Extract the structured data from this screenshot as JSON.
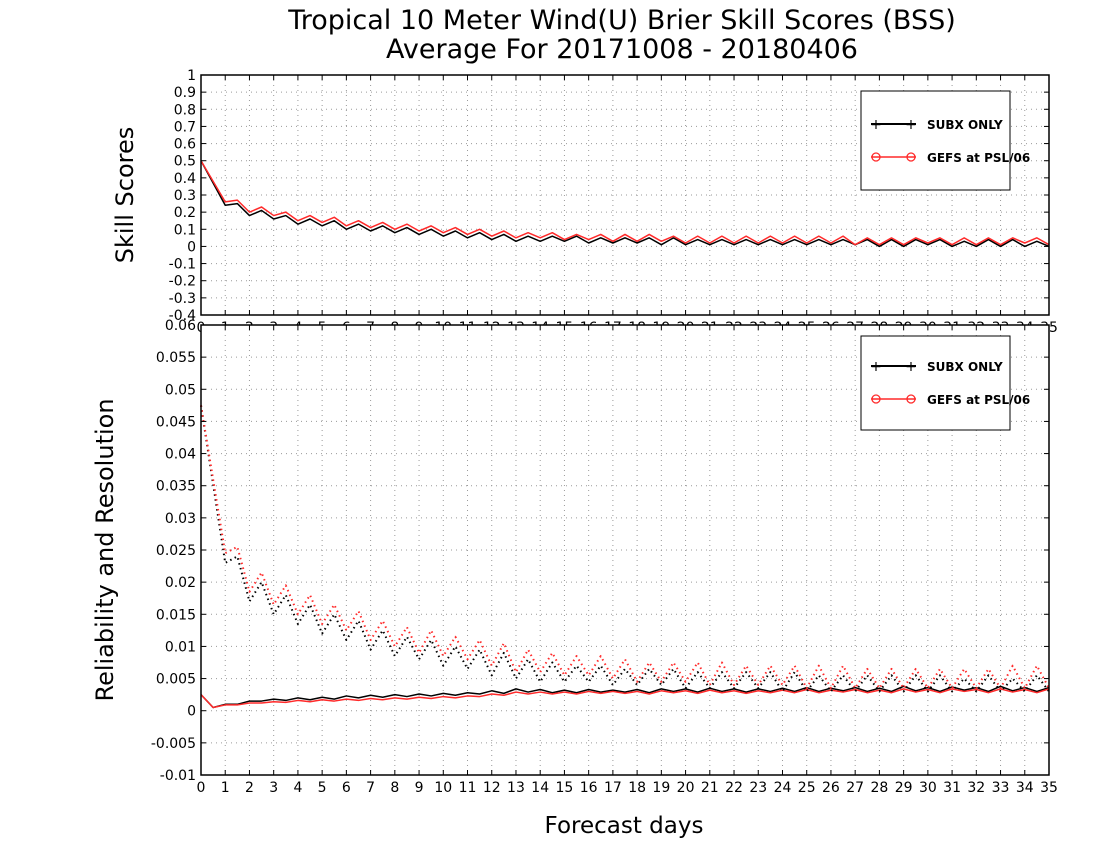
{
  "title": {
    "line1": "Tropical 10 Meter Wind(U) Brier Skill Scores (BSS)",
    "line2": "Average For 20171008 - 20180406"
  },
  "xlabel": "Forecast days",
  "legend_labels": [
    "SUBX ONLY",
    "GEFS at PSL/06"
  ],
  "colors": {
    "series1": "#000000",
    "series2": "#ff2a2a",
    "grid": "#9a9a9a"
  },
  "chart_data": [
    {
      "type": "line",
      "title": "Tropical 10 Meter Wind(U) Brier Skill Scores (BSS)",
      "ylabel": "Skill Scores",
      "xlabel": "",
      "xlim": [
        0,
        35
      ],
      "ylim": [
        -0.4,
        1
      ],
      "x_ticks": [
        0,
        1,
        2,
        3,
        4,
        5,
        6,
        7,
        8,
        9,
        10,
        11,
        12,
        13,
        14,
        15,
        16,
        17,
        18,
        19,
        20,
        21,
        22,
        23,
        24,
        25,
        26,
        27,
        28,
        29,
        30,
        31,
        32,
        33,
        34,
        35
      ],
      "y_ticks": [
        "-0.4",
        "-0.3",
        "-0.2",
        "-0.1",
        "0",
        "0.1",
        "0.2",
        "0.3",
        "0.4",
        "0.5",
        "0.6",
        "0.7",
        "0.8",
        "0.9",
        "1"
      ],
      "grid": true,
      "legend": "top-right",
      "series": [
        {
          "name": "SUBX ONLY",
          "color": "#000000",
          "style": "solid",
          "x": [
            0,
            1,
            1.5,
            2,
            2.5,
            3,
            3.5,
            4,
            4.5,
            5,
            5.5,
            6,
            6.5,
            7,
            7.5,
            8,
            8.5,
            9,
            9.5,
            10,
            10.5,
            11,
            11.5,
            12,
            12.5,
            13,
            13.5,
            14,
            14.5,
            15,
            15.5,
            16,
            16.5,
            17,
            17.5,
            18,
            18.5,
            19,
            19.5,
            20,
            20.5,
            21,
            21.5,
            22,
            22.5,
            23,
            23.5,
            24,
            24.5,
            25,
            25.5,
            26,
            26.5,
            27,
            27.5,
            28,
            28.5,
            29,
            29.5,
            30,
            30.5,
            31,
            31.5,
            32,
            32.5,
            33,
            33.5,
            34,
            34.5,
            35
          ],
          "y": [
            0.5,
            0.24,
            0.25,
            0.18,
            0.21,
            0.16,
            0.18,
            0.13,
            0.16,
            0.12,
            0.15,
            0.1,
            0.13,
            0.09,
            0.12,
            0.08,
            0.11,
            0.07,
            0.1,
            0.06,
            0.09,
            0.05,
            0.08,
            0.04,
            0.07,
            0.03,
            0.06,
            0.03,
            0.06,
            0.03,
            0.06,
            0.02,
            0.05,
            0.02,
            0.05,
            0.02,
            0.05,
            0.01,
            0.05,
            0.01,
            0.04,
            0.01,
            0.04,
            0.01,
            0.04,
            0.01,
            0.04,
            0.01,
            0.04,
            0.01,
            0.04,
            0.01,
            0.04,
            0.01,
            0.04,
            0.0,
            0.04,
            0.0,
            0.04,
            0.01,
            0.04,
            0.0,
            0.03,
            0.0,
            0.04,
            0.0,
            0.04,
            0.0,
            0.03,
            0.0
          ]
        },
        {
          "name": "GEFS at PSL/06",
          "color": "#ff2a2a",
          "style": "solid",
          "x": [
            0,
            1,
            1.5,
            2,
            2.5,
            3,
            3.5,
            4,
            4.5,
            5,
            5.5,
            6,
            6.5,
            7,
            7.5,
            8,
            8.5,
            9,
            9.5,
            10,
            10.5,
            11,
            11.5,
            12,
            12.5,
            13,
            13.5,
            14,
            14.5,
            15,
            15.5,
            16,
            16.5,
            17,
            17.5,
            18,
            18.5,
            19,
            19.5,
            20,
            20.5,
            21,
            21.5,
            22,
            22.5,
            23,
            23.5,
            24,
            24.5,
            25,
            25.5,
            26,
            26.5,
            27,
            27.5,
            28,
            28.5,
            29,
            29.5,
            30,
            30.5,
            31,
            31.5,
            32,
            32.5,
            33,
            33.5,
            34,
            34.5,
            35
          ],
          "y": [
            0.5,
            0.26,
            0.27,
            0.2,
            0.23,
            0.18,
            0.2,
            0.15,
            0.18,
            0.14,
            0.17,
            0.12,
            0.15,
            0.11,
            0.14,
            0.1,
            0.13,
            0.09,
            0.12,
            0.08,
            0.11,
            0.07,
            0.1,
            0.06,
            0.09,
            0.05,
            0.08,
            0.05,
            0.08,
            0.04,
            0.07,
            0.04,
            0.07,
            0.03,
            0.07,
            0.03,
            0.07,
            0.03,
            0.06,
            0.02,
            0.06,
            0.02,
            0.06,
            0.02,
            0.06,
            0.02,
            0.06,
            0.02,
            0.06,
            0.02,
            0.06,
            0.02,
            0.06,
            0.01,
            0.05,
            0.01,
            0.05,
            0.01,
            0.05,
            0.02,
            0.05,
            0.01,
            0.05,
            0.01,
            0.05,
            0.01,
            0.05,
            0.02,
            0.05,
            0.01
          ]
        }
      ]
    },
    {
      "type": "line",
      "ylabel": "Reliability and Resolution",
      "xlabel": "Forecast days",
      "xlim": [
        0,
        35
      ],
      "ylim": [
        -0.01,
        0.06
      ],
      "x_ticks": [
        0,
        1,
        2,
        3,
        4,
        5,
        6,
        7,
        8,
        9,
        10,
        11,
        12,
        13,
        14,
        15,
        16,
        17,
        18,
        19,
        20,
        21,
        22,
        23,
        24,
        25,
        26,
        27,
        28,
        29,
        30,
        31,
        32,
        33,
        34,
        35
      ],
      "y_ticks": [
        "-0.01",
        "-0.005",
        "0",
        "0.005",
        "0.01",
        "0.015",
        "0.02",
        "0.025",
        "0.03",
        "0.035",
        "0.04",
        "0.045",
        "0.05",
        "0.055",
        "0.06"
      ],
      "grid": true,
      "legend": "top-right",
      "series": [
        {
          "name": "SUBX ONLY reliability",
          "color": "#000000",
          "style": "solid",
          "x": [
            0,
            0.5,
            1,
            1.5,
            2,
            2.5,
            3,
            3.5,
            4,
            4.5,
            5,
            5.5,
            6,
            6.5,
            7,
            7.5,
            8,
            8.5,
            9,
            9.5,
            10,
            10.5,
            11,
            11.5,
            12,
            12.5,
            13,
            13.5,
            14,
            14.5,
            15,
            15.5,
            16,
            16.5,
            17,
            17.5,
            18,
            18.5,
            19,
            19.5,
            20,
            20.5,
            21,
            21.5,
            22,
            22.5,
            23,
            23.5,
            24,
            24.5,
            25,
            25.5,
            26,
            26.5,
            27,
            27.5,
            28,
            28.5,
            29,
            29.5,
            30,
            30.5,
            31,
            31.5,
            32,
            32.5,
            33,
            33.5,
            34,
            34.5,
            35
          ],
          "y": [
            0.0025,
            0.0005,
            0.001,
            0.001,
            0.0015,
            0.0015,
            0.0018,
            0.0016,
            0.002,
            0.0017,
            0.0021,
            0.0018,
            0.0023,
            0.002,
            0.0024,
            0.0021,
            0.0025,
            0.0022,
            0.0026,
            0.0023,
            0.0027,
            0.0024,
            0.0028,
            0.0026,
            0.0031,
            0.0027,
            0.0034,
            0.0029,
            0.0033,
            0.0028,
            0.0032,
            0.0028,
            0.0033,
            0.0029,
            0.0032,
            0.0029,
            0.0033,
            0.0028,
            0.0034,
            0.003,
            0.0034,
            0.0029,
            0.0035,
            0.003,
            0.0034,
            0.0029,
            0.0034,
            0.003,
            0.0035,
            0.003,
            0.0036,
            0.003,
            0.0035,
            0.0031,
            0.0036,
            0.003,
            0.0035,
            0.003,
            0.0038,
            0.0031,
            0.0036,
            0.003,
            0.0037,
            0.0032,
            0.0036,
            0.003,
            0.0038,
            0.0031,
            0.0036,
            0.003,
            0.0036
          ]
        },
        {
          "name": "GEFS at PSL/06 reliability",
          "color": "#ff2a2a",
          "style": "solid",
          "x": [
            0,
            0.5,
            1,
            1.5,
            2,
            2.5,
            3,
            3.5,
            4,
            4.5,
            5,
            5.5,
            6,
            6.5,
            7,
            7.5,
            8,
            8.5,
            9,
            9.5,
            10,
            10.5,
            11,
            11.5,
            12,
            12.5,
            13,
            13.5,
            14,
            14.5,
            15,
            15.5,
            16,
            16.5,
            17,
            17.5,
            18,
            18.5,
            19,
            19.5,
            20,
            20.5,
            21,
            21.5,
            22,
            22.5,
            23,
            23.5,
            24,
            24.5,
            25,
            25.5,
            26,
            26.5,
            27,
            27.5,
            28,
            28.5,
            29,
            29.5,
            30,
            30.5,
            31,
            31.5,
            32,
            32.5,
            33,
            33.5,
            34,
            34.5,
            35
          ],
          "y": [
            0.0025,
            0.0005,
            0.0009,
            0.0009,
            0.0012,
            0.0012,
            0.0014,
            0.0013,
            0.0016,
            0.0014,
            0.0017,
            0.0015,
            0.0018,
            0.0016,
            0.0019,
            0.0017,
            0.002,
            0.0018,
            0.0021,
            0.0019,
            0.0022,
            0.002,
            0.0023,
            0.0022,
            0.0026,
            0.0024,
            0.0029,
            0.0026,
            0.0029,
            0.0026,
            0.0029,
            0.0026,
            0.003,
            0.0027,
            0.003,
            0.0027,
            0.003,
            0.0026,
            0.0031,
            0.0028,
            0.0031,
            0.0027,
            0.0032,
            0.0028,
            0.0031,
            0.0027,
            0.0031,
            0.0028,
            0.0032,
            0.0028,
            0.0033,
            0.0028,
            0.0032,
            0.0029,
            0.0033,
            0.0028,
            0.0032,
            0.0028,
            0.0034,
            0.0029,
            0.0033,
            0.0028,
            0.0034,
            0.003,
            0.0033,
            0.0028,
            0.0034,
            0.0029,
            0.0033,
            0.0028,
            0.0034
          ]
        },
        {
          "name": "SUBX ONLY resolution",
          "color": "#000000",
          "style": "dotted",
          "x": [
            0,
            1,
            1.5,
            2,
            2.5,
            3,
            3.5,
            4,
            4.5,
            5,
            5.5,
            6,
            6.5,
            7,
            7.5,
            8,
            8.5,
            9,
            9.5,
            10,
            10.5,
            11,
            11.5,
            12,
            12.5,
            13,
            13.5,
            14,
            14.5,
            15,
            15.5,
            16,
            16.5,
            17,
            17.5,
            18,
            18.5,
            19,
            19.5,
            20,
            20.5,
            21,
            21.5,
            22,
            22.5,
            23,
            23.5,
            24,
            24.5,
            25,
            25.5,
            26,
            26.5,
            27,
            27.5,
            28,
            28.5,
            29,
            29.5,
            30,
            30.5,
            31,
            31.5,
            32,
            32.5,
            33,
            33.5,
            34,
            34.5,
            35
          ],
          "y": [
            0.0475,
            0.023,
            0.024,
            0.017,
            0.02,
            0.015,
            0.018,
            0.0135,
            0.0165,
            0.012,
            0.015,
            0.011,
            0.014,
            0.0095,
            0.0125,
            0.0085,
            0.0115,
            0.008,
            0.011,
            0.007,
            0.01,
            0.0065,
            0.0095,
            0.0055,
            0.009,
            0.005,
            0.008,
            0.0045,
            0.0075,
            0.0045,
            0.007,
            0.0045,
            0.007,
            0.004,
            0.0065,
            0.004,
            0.0065,
            0.004,
            0.0065,
            0.0035,
            0.006,
            0.0035,
            0.006,
            0.0035,
            0.006,
            0.0035,
            0.006,
            0.003,
            0.006,
            0.003,
            0.0055,
            0.003,
            0.0055,
            0.003,
            0.0055,
            0.003,
            0.0055,
            0.003,
            0.0055,
            0.003,
            0.0055,
            0.003,
            0.005,
            0.003,
            0.0055,
            0.003,
            0.005,
            0.003,
            0.0055,
            0.003
          ]
        },
        {
          "name": "GEFS at PSL/06 resolution",
          "color": "#ff2a2a",
          "style": "dotted",
          "x": [
            0,
            1,
            1.5,
            2,
            2.5,
            3,
            3.5,
            4,
            4.5,
            5,
            5.5,
            6,
            6.5,
            7,
            7.5,
            8,
            8.5,
            9,
            9.5,
            10,
            10.5,
            11,
            11.5,
            12,
            12.5,
            13,
            13.5,
            14,
            14.5,
            15,
            15.5,
            16,
            16.5,
            17,
            17.5,
            18,
            18.5,
            19,
            19.5,
            20,
            20.5,
            21,
            21.5,
            22,
            22.5,
            23,
            23.5,
            24,
            24.5,
            25,
            25.5,
            26,
            26.5,
            27,
            27.5,
            28,
            28.5,
            29,
            29.5,
            30,
            30.5,
            31,
            31.5,
            32,
            32.5,
            33,
            33.5,
            34,
            34.5,
            35
          ],
          "y": [
            0.0475,
            0.0245,
            0.0255,
            0.0185,
            0.0215,
            0.0165,
            0.0195,
            0.015,
            0.018,
            0.0135,
            0.0165,
            0.0125,
            0.0155,
            0.011,
            0.014,
            0.01,
            0.013,
            0.009,
            0.0125,
            0.0085,
            0.0115,
            0.008,
            0.011,
            0.007,
            0.0105,
            0.006,
            0.0095,
            0.006,
            0.009,
            0.0055,
            0.0085,
            0.0055,
            0.0085,
            0.005,
            0.008,
            0.0045,
            0.0075,
            0.0045,
            0.0075,
            0.0045,
            0.0075,
            0.004,
            0.0075,
            0.004,
            0.007,
            0.004,
            0.007,
            0.004,
            0.007,
            0.0035,
            0.007,
            0.0035,
            0.007,
            0.0035,
            0.0065,
            0.0035,
            0.0065,
            0.0035,
            0.0065,
            0.0035,
            0.0065,
            0.0035,
            0.0065,
            0.0035,
            0.0065,
            0.0035,
            0.007,
            0.0035,
            0.007,
            0.0035
          ]
        }
      ]
    }
  ]
}
